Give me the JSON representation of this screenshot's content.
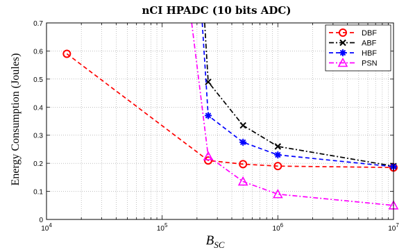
{
  "chart_data": {
    "type": "line",
    "title": "nCI HPADC (10 bits ADC)",
    "xlabel": "B",
    "xlabel_sub": "SC",
    "ylabel": "Energy Consumption (Joules)",
    "x_scale": "log",
    "xlim": [
      10000,
      10000000
    ],
    "ylim": [
      0,
      0.7
    ],
    "x_ticks": [
      {
        "value": 10000,
        "base": "10",
        "exp": "4"
      },
      {
        "value": 100000,
        "base": "10",
        "exp": "5"
      },
      {
        "value": 1000000,
        "base": "10",
        "exp": "6"
      },
      {
        "value": 10000000,
        "base": "10",
        "exp": "7"
      }
    ],
    "y_ticks": [
      {
        "value": 0,
        "label": "0"
      },
      {
        "value": 0.1,
        "label": "0.1"
      },
      {
        "value": 0.2,
        "label": "0.2"
      },
      {
        "value": 0.3,
        "label": "0.3"
      },
      {
        "value": 0.4,
        "label": "0.4"
      },
      {
        "value": 0.5,
        "label": "0.5"
      },
      {
        "value": 0.6,
        "label": "0.6"
      },
      {
        "value": 0.7,
        "label": "0.7"
      }
    ],
    "grid": true,
    "legend_position": "top-right",
    "series": [
      {
        "name": "DBF",
        "color": "#ff0000",
        "dash": "6,4",
        "marker": "circle",
        "points": [
          [
            15000,
            0.59
          ],
          [
            250000,
            0.21
          ],
          [
            500000,
            0.197
          ],
          [
            1000000,
            0.19
          ],
          [
            10000000,
            0.185
          ]
        ],
        "marker_points": [
          [
            15000,
            0.59
          ],
          [
            250000,
            0.21
          ],
          [
            500000,
            0.197
          ],
          [
            1000000,
            0.19
          ],
          [
            10000000,
            0.185
          ]
        ]
      },
      {
        "name": "ABF",
        "color": "#000000",
        "dash": "7,3,2,3",
        "marker": "x",
        "points": [
          [
            233000,
            0.7
          ],
          [
            250000,
            0.49
          ],
          [
            500000,
            0.335
          ],
          [
            1000000,
            0.26
          ],
          [
            10000000,
            0.19
          ]
        ],
        "marker_points": [
          [
            250000,
            0.49
          ],
          [
            500000,
            0.335
          ],
          [
            1000000,
            0.26
          ],
          [
            10000000,
            0.19
          ]
        ]
      },
      {
        "name": "HBF",
        "color": "#0000ff",
        "dash": "6,4",
        "marker": "star",
        "points": [
          [
            222000,
            0.7
          ],
          [
            250000,
            0.37
          ],
          [
            500000,
            0.275
          ],
          [
            1000000,
            0.23
          ],
          [
            10000000,
            0.188
          ]
        ],
        "marker_points": [
          [
            250000,
            0.37
          ],
          [
            500000,
            0.275
          ],
          [
            1000000,
            0.23
          ],
          [
            10000000,
            0.188
          ]
        ]
      },
      {
        "name": "PSN",
        "color": "#ff00ff",
        "dash": "7,3,2,3",
        "marker": "triangle",
        "points": [
          [
            180000,
            0.7
          ],
          [
            250000,
            0.225
          ],
          [
            500000,
            0.135
          ],
          [
            1000000,
            0.09
          ],
          [
            10000000,
            0.05
          ]
        ],
        "marker_points": [
          [
            250000,
            0.225
          ],
          [
            500000,
            0.135
          ],
          [
            1000000,
            0.09
          ],
          [
            10000000,
            0.05
          ]
        ]
      }
    ]
  }
}
